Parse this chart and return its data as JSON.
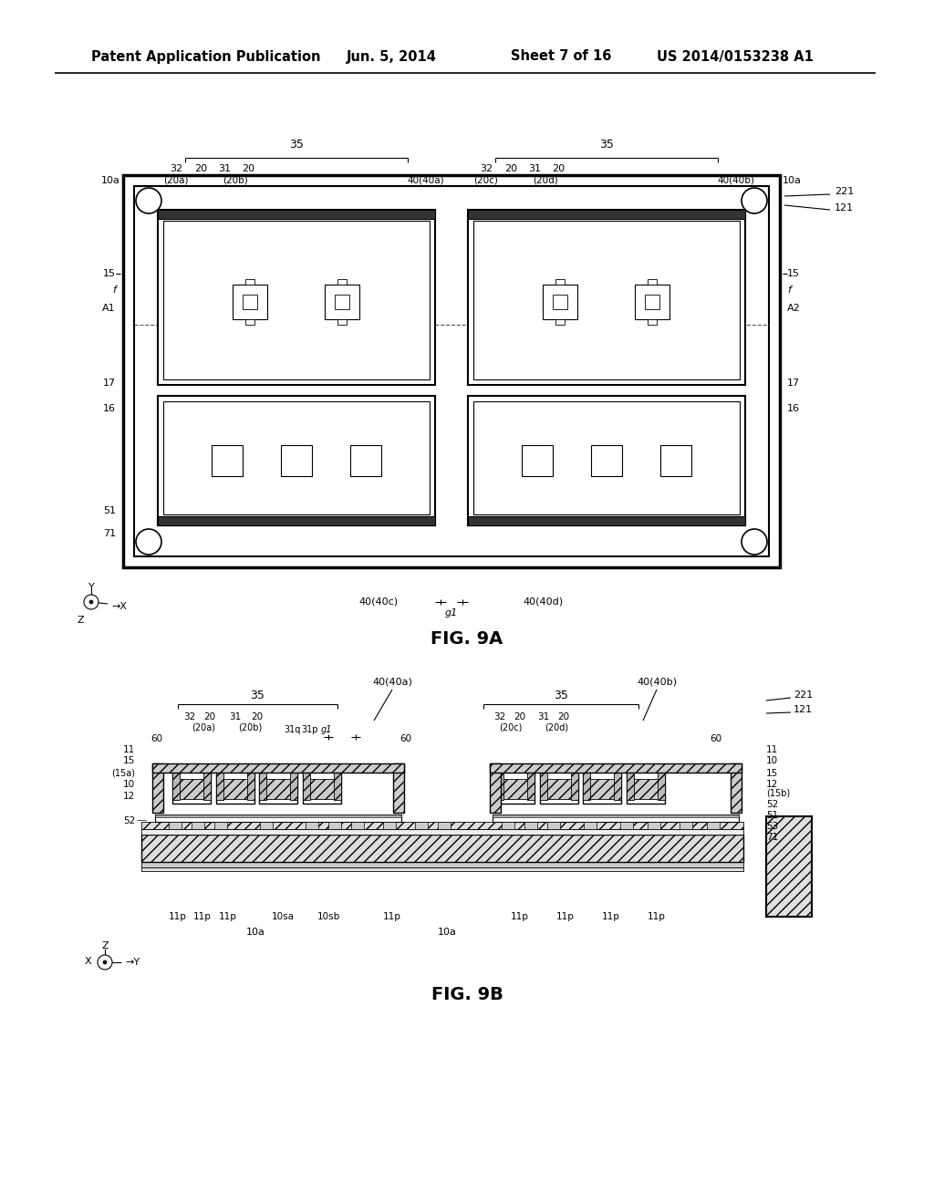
{
  "bg_color": "#ffffff",
  "header_left": "Patent Application Publication",
  "header_mid1": "Jun. 5, 2014",
  "header_mid2": "Sheet 7 of 16",
  "header_right": "US 2014/0153238 A1",
  "fig9a_label": "FIG. 9A",
  "fig9b_label": "FIG. 9B"
}
